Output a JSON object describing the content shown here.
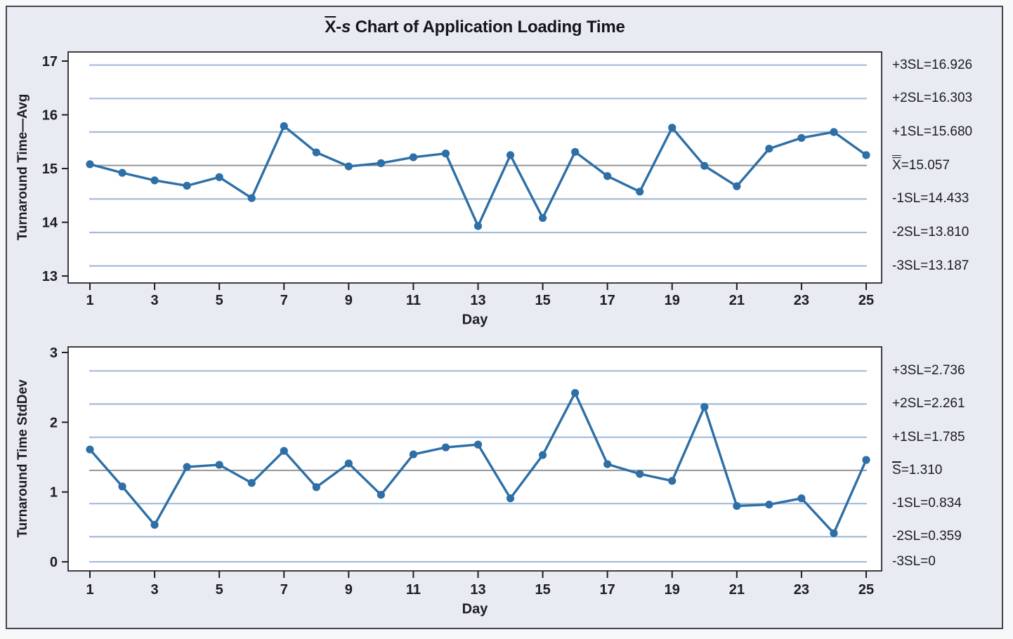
{
  "figure": {
    "title": {
      "x": "X",
      "sep": "-",
      "s": "s",
      "rest": " Chart of Application Loading Time"
    }
  },
  "colors": {
    "series": "#2d6fa6",
    "limit_line": "#a4bbd8",
    "center_line": "#969696",
    "axis_text": "#1c1c22",
    "plot_background": "#ffffff",
    "figure_background": "#e8ebf2",
    "plot_border": "#2a2a2e"
  },
  "chart_data": [
    {
      "type": "line",
      "name": "xbar-chart",
      "ylabel": "Turnaround Time—Avg",
      "xlabel": "Day",
      "x": [
        1,
        2,
        3,
        4,
        5,
        6,
        7,
        8,
        9,
        10,
        11,
        12,
        13,
        14,
        15,
        16,
        17,
        18,
        19,
        20,
        21,
        22,
        23,
        24,
        25
      ],
      "values": [
        15.08,
        14.92,
        14.78,
        14.68,
        14.84,
        14.45,
        15.79,
        15.3,
        15.04,
        15.1,
        15.21,
        15.28,
        13.93,
        15.25,
        14.08,
        15.31,
        14.86,
        14.57,
        15.76,
        15.05,
        14.67,
        15.37,
        15.57,
        15.68,
        15.25
      ],
      "ylim": [
        12.87,
        17.17
      ],
      "yticks": [
        13,
        14,
        15,
        16,
        17
      ],
      "xticks": [
        1,
        3,
        5,
        7,
        9,
        11,
        13,
        15,
        17,
        19,
        21,
        23,
        25
      ],
      "grid": "limit-lines-only",
      "legend": "none",
      "limits": [
        {
          "text": "+3SL=16.926",
          "value": 16.926,
          "kind": "limit"
        },
        {
          "text": "+2SL=16.303",
          "value": 16.303,
          "kind": "limit"
        },
        {
          "text": "+1SL=15.680",
          "value": 15.68,
          "kind": "limit"
        },
        {
          "text": "X=15.057",
          "value": 15.057,
          "kind": "center",
          "bar": "double"
        },
        {
          "text": "-1SL=14.433",
          "value": 14.433,
          "kind": "limit"
        },
        {
          "text": "-2SL=13.810",
          "value": 13.81,
          "kind": "limit"
        },
        {
          "text": "-3SL=13.187",
          "value": 13.187,
          "kind": "limit"
        }
      ]
    },
    {
      "type": "line",
      "name": "s-chart",
      "ylabel": "Turnaround Time StdDev",
      "xlabel": "Day",
      "x": [
        1,
        2,
        3,
        4,
        5,
        6,
        7,
        8,
        9,
        10,
        11,
        12,
        13,
        14,
        15,
        16,
        17,
        18,
        19,
        20,
        21,
        22,
        23,
        24,
        25
      ],
      "values": [
        1.61,
        1.08,
        0.53,
        1.36,
        1.39,
        1.13,
        1.59,
        1.07,
        1.41,
        0.96,
        1.54,
        1.64,
        1.68,
        0.91,
        1.53,
        2.42,
        1.4,
        1.26,
        1.16,
        2.22,
        0.8,
        0.82,
        0.91,
        0.41,
        1.46
      ],
      "ylim": [
        -0.13,
        3.08
      ],
      "yticks": [
        0,
        1,
        2,
        3
      ],
      "xticks": [
        1,
        3,
        5,
        7,
        9,
        11,
        13,
        15,
        17,
        19,
        21,
        23,
        25
      ],
      "grid": "limit-lines-only",
      "legend": "none",
      "limits": [
        {
          "text": "+3SL=2.736",
          "value": 2.736,
          "kind": "limit"
        },
        {
          "text": "+2SL=2.261",
          "value": 2.261,
          "kind": "limit"
        },
        {
          "text": "+1SL=1.785",
          "value": 1.785,
          "kind": "limit"
        },
        {
          "text": "S=1.310",
          "value": 1.31,
          "kind": "center",
          "bar": "single"
        },
        {
          "text": "-1SL=0.834",
          "value": 0.834,
          "kind": "limit"
        },
        {
          "text": "-2SL=0.359",
          "value": 0.359,
          "kind": "limit"
        },
        {
          "text": "-3SL=0",
          "value": 0,
          "kind": "limit"
        }
      ]
    }
  ]
}
